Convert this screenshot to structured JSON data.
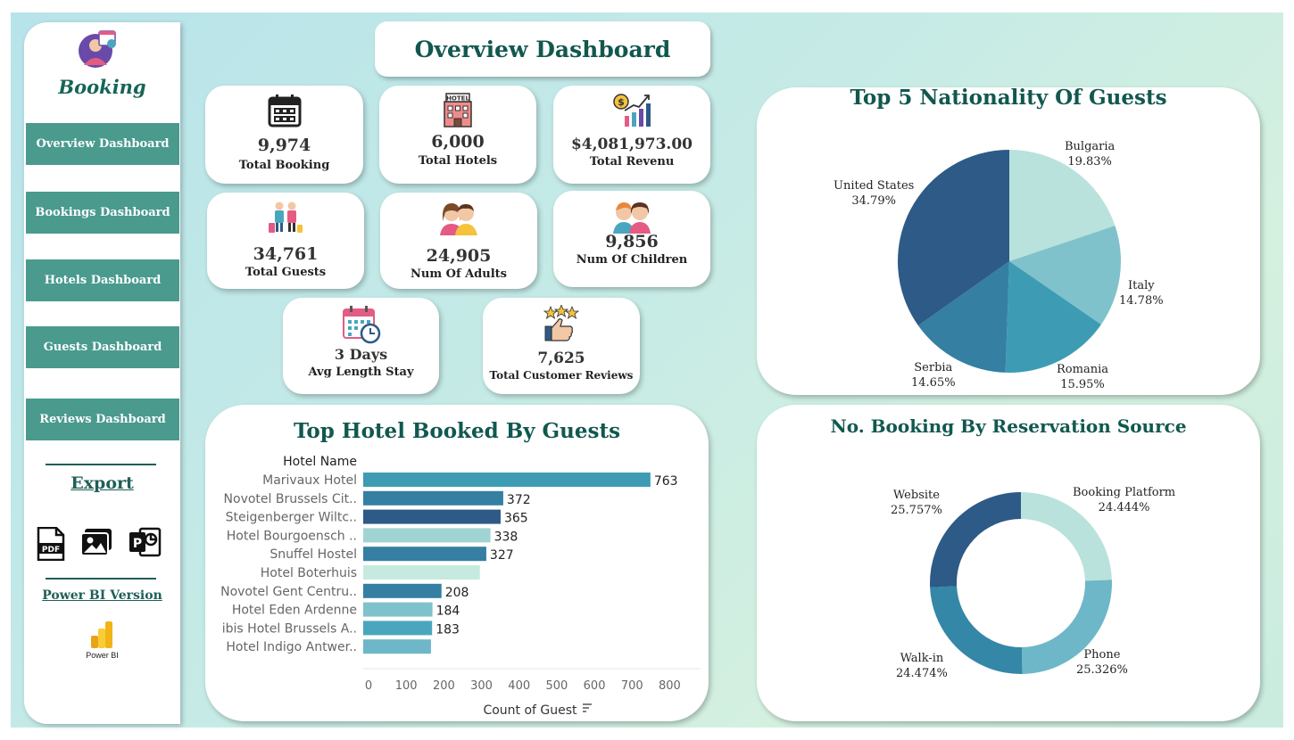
{
  "sidebar": {
    "logo_text": "Booking",
    "nav": [
      {
        "label": "Overview Dashboard"
      },
      {
        "label": "Bookings Dashboard"
      },
      {
        "label": "Hotels Dashboard"
      },
      {
        "label": "Guests Dashboard"
      },
      {
        "label": "Reviews Dashboard"
      }
    ],
    "export_title": "Export",
    "export_icons": [
      "pdf-icon",
      "image-icon",
      "powerpoint-icon"
    ],
    "powerbi_title": "Power BI Version",
    "powerbi_label": "Power BI"
  },
  "header": {
    "title": "Overview Dashboard"
  },
  "kpis": [
    {
      "value": "9,974",
      "label": "Total Booking",
      "icon": "calendar-icon"
    },
    {
      "value": "6,000",
      "label": "Total Hotels",
      "icon": "hotel-icon"
    },
    {
      "value": "$4,081,973.00",
      "label": "Total Revenu",
      "icon": "revenue-chart-icon"
    },
    {
      "value": "34,761",
      "label": "Total Guests",
      "icon": "guests-icon"
    },
    {
      "value": "24,905",
      "label": "Num Of Adults",
      "icon": "adults-icon"
    },
    {
      "value": "9,856",
      "label": "Num Of Children",
      "icon": "children-icon"
    },
    {
      "value": "3 Days",
      "label": "Avg Length Stay",
      "icon": "calendar-clock-icon"
    },
    {
      "value": "7,625",
      "label": "Total Customer Reviews",
      "icon": "thumbs-up-stars-icon"
    }
  ],
  "colors": {
    "accent": "#4a9a8e",
    "title": "#11584f",
    "c1": "#2d5a87",
    "c2": "#3d92ac",
    "c3": "#b9e2dc",
    "c4": "#7fc2cb",
    "c5": "#347fa2"
  },
  "chart_data": [
    {
      "type": "pie",
      "title": "Top 5 Nationality Of Guests",
      "slices": [
        {
          "label": "Bulgaria",
          "pct": "19.83%",
          "value": 19.83,
          "color": "#b9e2dc"
        },
        {
          "label": "Italy",
          "pct": "14.78%",
          "value": 14.78,
          "color": "#7fc2cb"
        },
        {
          "label": "Romania",
          "pct": "15.95%",
          "value": 15.95,
          "color": "#3d9cb4"
        },
        {
          "label": "Serbia",
          "pct": "14.65%",
          "value": 14.65,
          "color": "#347fa2"
        },
        {
          "label": "United States",
          "pct": "34.79%",
          "value": 34.79,
          "color": "#2d5a87"
        }
      ]
    },
    {
      "type": "bar",
      "title": "Top Hotel Booked By Guests",
      "category_header": "Hotel Name",
      "xlabel": "Count of Guest",
      "xlim": [
        0,
        800
      ],
      "ticks": [
        "0",
        "100",
        "200",
        "300",
        "400",
        "500",
        "600",
        "700",
        "800"
      ],
      "categories": [
        "Marivaux Hotel",
        "Novotel Brussels Cit..",
        "Steigenberger Wiltc..",
        "Hotel Bourgoensch ..",
        "Snuffel Hostel",
        "Hotel Boterhuis",
        "Novotel Gent Centru..",
        "Hotel Eden Ardenne",
        "ibis Hotel Brussels A..",
        "Hotel Indigo Antwer.."
      ],
      "values": [
        763,
        372,
        365,
        338,
        327,
        310,
        208,
        184,
        183,
        180
      ],
      "value_labels": [
        "763",
        "372",
        "365",
        "338",
        "327",
        "",
        "208",
        "184",
        "183",
        ""
      ],
      "colors": [
        "#3d9cb4",
        "#347fa2",
        "#2d5a87",
        "#9fd4d3",
        "#347fa2",
        "#c6eadf",
        "#347fa2",
        "#7fc2cb",
        "#4aa6bf",
        "#6db7c8"
      ]
    },
    {
      "type": "pie",
      "variant": "donut",
      "title": "No. Booking By Reservation Source",
      "slices": [
        {
          "label": "Booking Platform",
          "pct": "24.444%",
          "value": 24.444,
          "color": "#b9e2dc"
        },
        {
          "label": "Phone",
          "pct": "25.326%",
          "value": 25.326,
          "color": "#6db7c8"
        },
        {
          "label": "Walk-in",
          "pct": "24.474%",
          "value": 24.474,
          "color": "#3487a7"
        },
        {
          "label": "Website",
          "pct": "25.757%",
          "value": 25.757,
          "color": "#2d5a87"
        }
      ]
    }
  ]
}
